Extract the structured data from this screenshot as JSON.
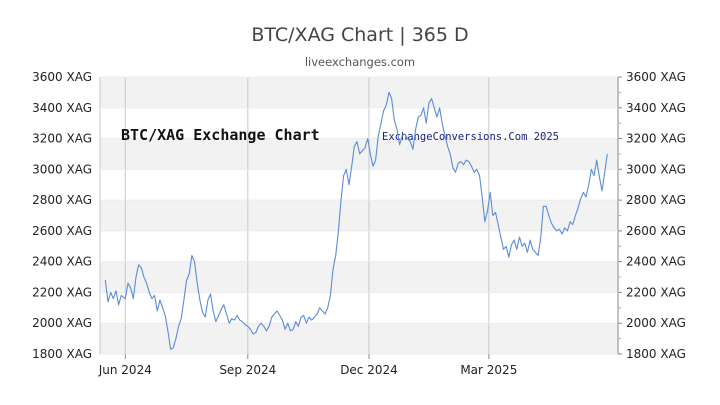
{
  "title": "BTC/XAG Chart | 365 D",
  "subtitle": "liveexchanges.com",
  "colors": {
    "line": "#5b8bd9",
    "band": "#f2f2f2",
    "grid": "#c8c8c8",
    "watermark": "#1a237e"
  },
  "annotations": {
    "left_label": "BTC/XAG Exchange Chart",
    "right_label": "ExchangeConversions.Com 2025"
  },
  "chart_data": {
    "type": "line",
    "title": "BTC/XAG Chart | 365 D",
    "xlabel": "",
    "ylabel": "",
    "ylim": [
      1800,
      3600
    ],
    "y_ticks": [
      "1800 XAG",
      "2000 XAG",
      "2200 XAG",
      "2400 XAG",
      "2600 XAG",
      "2800 XAG",
      "3000 XAG",
      "3200 XAG",
      "3400 XAG",
      "3600 XAG"
    ],
    "x_ticks": [
      "Jun 2024",
      "Sep 2024",
      "Dec 2024",
      "Mar 2025"
    ],
    "x_tick_dates": [
      "2024-06-01",
      "2024-09-01",
      "2024-12-01",
      "2025-03-01"
    ],
    "grid": true,
    "legend": "none",
    "series": [
      {
        "points": [
          [
            "2024-05-17",
            2280
          ],
          [
            "2024-05-19",
            2140
          ],
          [
            "2024-05-21",
            2200
          ],
          [
            "2024-05-23",
            2160
          ],
          [
            "2024-05-25",
            2210
          ],
          [
            "2024-05-27",
            2120
          ],
          [
            "2024-05-29",
            2180
          ],
          [
            "2024-06-01",
            2160
          ],
          [
            "2024-06-03",
            2260
          ],
          [
            "2024-06-05",
            2230
          ],
          [
            "2024-06-07",
            2160
          ],
          [
            "2024-06-09",
            2300
          ],
          [
            "2024-06-11",
            2380
          ],
          [
            "2024-06-13",
            2360
          ],
          [
            "2024-06-15",
            2300
          ],
          [
            "2024-06-17",
            2260
          ],
          [
            "2024-06-19",
            2200
          ],
          [
            "2024-06-21",
            2160
          ],
          [
            "2024-06-23",
            2180
          ],
          [
            "2024-06-25",
            2080
          ],
          [
            "2024-06-27",
            2150
          ],
          [
            "2024-06-29",
            2100
          ],
          [
            "2024-07-01",
            2050
          ],
          [
            "2024-07-03",
            1950
          ],
          [
            "2024-07-05",
            1830
          ],
          [
            "2024-07-07",
            1840
          ],
          [
            "2024-07-09",
            1900
          ],
          [
            "2024-07-11",
            1980
          ],
          [
            "2024-07-13",
            2030
          ],
          [
            "2024-07-15",
            2150
          ],
          [
            "2024-07-17",
            2280
          ],
          [
            "2024-07-19",
            2320
          ],
          [
            "2024-07-21",
            2440
          ],
          [
            "2024-07-23",
            2400
          ],
          [
            "2024-07-25",
            2260
          ],
          [
            "2024-07-27",
            2150
          ],
          [
            "2024-07-29",
            2070
          ],
          [
            "2024-07-31",
            2040
          ],
          [
            "2024-08-02",
            2150
          ],
          [
            "2024-08-04",
            2190
          ],
          [
            "2024-08-06",
            2080
          ],
          [
            "2024-08-08",
            2010
          ],
          [
            "2024-08-10",
            2050
          ],
          [
            "2024-08-12",
            2090
          ],
          [
            "2024-08-14",
            2120
          ],
          [
            "2024-08-16",
            2060
          ],
          [
            "2024-08-18",
            2000
          ],
          [
            "2024-08-20",
            2030
          ],
          [
            "2024-08-22",
            2020
          ],
          [
            "2024-08-24",
            2050
          ],
          [
            "2024-08-26",
            2020
          ],
          [
            "2024-08-28",
            2010
          ],
          [
            "2024-08-30",
            1990
          ],
          [
            "2024-09-01",
            1980
          ],
          [
            "2024-09-03",
            1960
          ],
          [
            "2024-09-05",
            1930
          ],
          [
            "2024-09-07",
            1940
          ],
          [
            "2024-09-09",
            1980
          ],
          [
            "2024-09-11",
            2000
          ],
          [
            "2024-09-13",
            1980
          ],
          [
            "2024-09-15",
            1950
          ],
          [
            "2024-09-17",
            1980
          ],
          [
            "2024-09-19",
            2040
          ],
          [
            "2024-09-21",
            2060
          ],
          [
            "2024-09-23",
            2080
          ],
          [
            "2024-09-25",
            2050
          ],
          [
            "2024-09-27",
            2020
          ],
          [
            "2024-09-29",
            1960
          ],
          [
            "2024-10-01",
            2000
          ],
          [
            "2024-10-03",
            1950
          ],
          [
            "2024-10-05",
            1960
          ],
          [
            "2024-10-07",
            2010
          ],
          [
            "2024-10-09",
            1980
          ],
          [
            "2024-10-11",
            2040
          ],
          [
            "2024-10-13",
            2050
          ],
          [
            "2024-10-15",
            2000
          ],
          [
            "2024-10-17",
            2040
          ],
          [
            "2024-10-19",
            2020
          ],
          [
            "2024-10-21",
            2040
          ],
          [
            "2024-10-23",
            2060
          ],
          [
            "2024-10-25",
            2100
          ],
          [
            "2024-10-27",
            2080
          ],
          [
            "2024-10-29",
            2060
          ],
          [
            "2024-10-31",
            2100
          ],
          [
            "2024-11-02",
            2180
          ],
          [
            "2024-11-04",
            2350
          ],
          [
            "2024-11-06",
            2440
          ],
          [
            "2024-11-08",
            2600
          ],
          [
            "2024-11-10",
            2800
          ],
          [
            "2024-11-12",
            2960
          ],
          [
            "2024-11-14",
            3000
          ],
          [
            "2024-11-16",
            2900
          ],
          [
            "2024-11-18",
            3020
          ],
          [
            "2024-11-20",
            3150
          ],
          [
            "2024-11-22",
            3180
          ],
          [
            "2024-11-24",
            3100
          ],
          [
            "2024-11-26",
            3120
          ],
          [
            "2024-11-28",
            3140
          ],
          [
            "2024-11-30",
            3200
          ],
          [
            "2024-12-02",
            3100
          ],
          [
            "2024-12-04",
            3020
          ],
          [
            "2024-12-06",
            3060
          ],
          [
            "2024-12-08",
            3220
          ],
          [
            "2024-12-10",
            3300
          ],
          [
            "2024-12-12",
            3380
          ],
          [
            "2024-12-14",
            3420
          ],
          [
            "2024-12-16",
            3500
          ],
          [
            "2024-12-18",
            3460
          ],
          [
            "2024-12-20",
            3320
          ],
          [
            "2024-12-22",
            3260
          ],
          [
            "2024-12-24",
            3160
          ],
          [
            "2024-12-26",
            3220
          ],
          [
            "2024-12-28",
            3230
          ],
          [
            "2024-12-30",
            3200
          ],
          [
            "2025-01-01",
            3180
          ],
          [
            "2025-01-03",
            3130
          ],
          [
            "2025-01-05",
            3260
          ],
          [
            "2025-01-07",
            3340
          ],
          [
            "2025-01-09",
            3350
          ],
          [
            "2025-01-11",
            3400
          ],
          [
            "2025-01-13",
            3300
          ],
          [
            "2025-01-15",
            3430
          ],
          [
            "2025-01-17",
            3460
          ],
          [
            "2025-01-19",
            3400
          ],
          [
            "2025-01-21",
            3340
          ],
          [
            "2025-01-23",
            3400
          ],
          [
            "2025-01-25",
            3300
          ],
          [
            "2025-01-27",
            3220
          ],
          [
            "2025-01-29",
            3150
          ],
          [
            "2025-01-31",
            3100
          ],
          [
            "2025-02-02",
            3010
          ],
          [
            "2025-02-04",
            2980
          ],
          [
            "2025-02-06",
            3040
          ],
          [
            "2025-02-08",
            3050
          ],
          [
            "2025-02-10",
            3030
          ],
          [
            "2025-02-12",
            3060
          ],
          [
            "2025-02-14",
            3050
          ],
          [
            "2025-02-16",
            3020
          ],
          [
            "2025-02-18",
            2980
          ],
          [
            "2025-02-20",
            3000
          ],
          [
            "2025-02-22",
            2960
          ],
          [
            "2025-02-24",
            2820
          ],
          [
            "2025-02-26",
            2660
          ],
          [
            "2025-02-28",
            2730
          ],
          [
            "2025-03-02",
            2850
          ],
          [
            "2025-03-04",
            2700
          ],
          [
            "2025-03-06",
            2720
          ],
          [
            "2025-03-08",
            2640
          ],
          [
            "2025-03-10",
            2560
          ],
          [
            "2025-03-12",
            2480
          ],
          [
            "2025-03-14",
            2500
          ],
          [
            "2025-03-16",
            2430
          ],
          [
            "2025-03-18",
            2510
          ],
          [
            "2025-03-20",
            2540
          ],
          [
            "2025-03-22",
            2480
          ],
          [
            "2025-03-24",
            2560
          ],
          [
            "2025-03-26",
            2500
          ],
          [
            "2025-03-28",
            2520
          ],
          [
            "2025-03-30",
            2460
          ],
          [
            "2025-04-01",
            2540
          ],
          [
            "2025-04-03",
            2480
          ],
          [
            "2025-04-05",
            2460
          ],
          [
            "2025-04-07",
            2440
          ],
          [
            "2025-04-09",
            2560
          ],
          [
            "2025-04-11",
            2760
          ],
          [
            "2025-04-13",
            2760
          ],
          [
            "2025-04-15",
            2700
          ],
          [
            "2025-04-17",
            2650
          ],
          [
            "2025-04-19",
            2620
          ],
          [
            "2025-04-21",
            2600
          ],
          [
            "2025-04-23",
            2610
          ],
          [
            "2025-04-25",
            2580
          ],
          [
            "2025-04-27",
            2620
          ],
          [
            "2025-04-29",
            2600
          ],
          [
            "2025-05-01",
            2660
          ],
          [
            "2025-05-03",
            2640
          ],
          [
            "2025-05-05",
            2700
          ],
          [
            "2025-05-07",
            2750
          ],
          [
            "2025-05-09",
            2810
          ],
          [
            "2025-05-11",
            2850
          ],
          [
            "2025-05-13",
            2820
          ],
          [
            "2025-05-15",
            2900
          ],
          [
            "2025-05-17",
            3000
          ],
          [
            "2025-05-19",
            2960
          ],
          [
            "2025-05-21",
            3060
          ],
          [
            "2025-05-23",
            2950
          ],
          [
            "2025-05-25",
            2860
          ],
          [
            "2025-05-27",
            2980
          ],
          [
            "2025-05-29",
            3100
          ]
        ]
      }
    ]
  }
}
